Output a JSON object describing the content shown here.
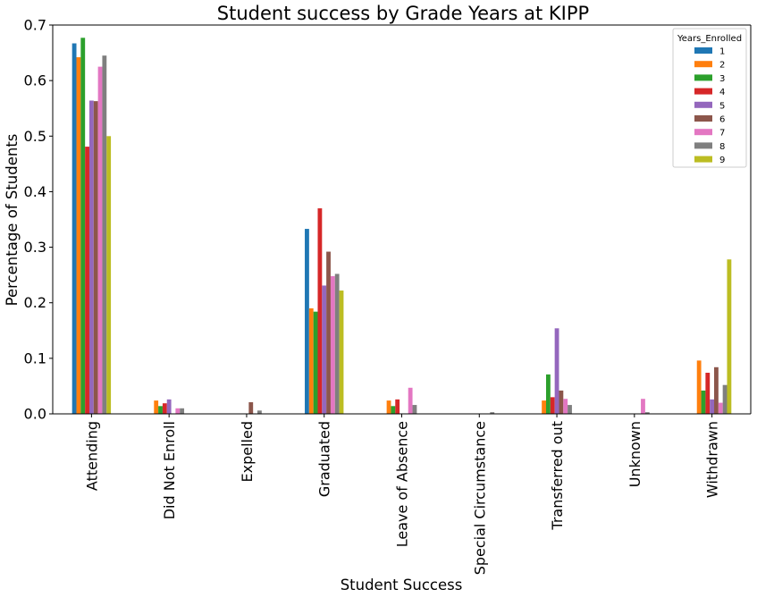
{
  "chart_data": {
    "type": "bar",
    "title": "Student success by Grade Years at KIPP",
    "xlabel": "Student Success",
    "ylabel": "Percentage of Students",
    "ylim": [
      0,
      0.7
    ],
    "yticks": [
      "0.0",
      "0.1",
      "0.2",
      "0.3",
      "0.4",
      "0.5",
      "0.6",
      "0.7"
    ],
    "grid": false,
    "legend_placement": "top-right",
    "legend_title": "Years_Enrolled",
    "categories": [
      "Attending",
      "Did Not Enroll",
      "Expelled",
      "Graduated",
      "Leave of Absence",
      "Special Circumstance",
      "Transferred out",
      "Unknown",
      "Withdrawn"
    ],
    "series": [
      {
        "name": "1",
        "color": "#1f77b4",
        "values": [
          0.667,
          0.0,
          0.0,
          0.333,
          0.0,
          0.0,
          0.0,
          0.0,
          0.0
        ]
      },
      {
        "name": "2",
        "color": "#ff7f0e",
        "values": [
          0.642,
          0.024,
          0.0,
          0.19,
          0.024,
          0.0,
          0.024,
          0.0,
          0.096
        ]
      },
      {
        "name": "3",
        "color": "#2ca02c",
        "values": [
          0.677,
          0.014,
          0.0,
          0.184,
          0.014,
          0.0,
          0.071,
          0.0,
          0.042
        ]
      },
      {
        "name": "4",
        "color": "#d62728",
        "values": [
          0.481,
          0.019,
          0.0,
          0.37,
          0.026,
          0.0,
          0.03,
          0.0,
          0.074
        ]
      },
      {
        "name": "5",
        "color": "#9467bd",
        "values": [
          0.564,
          0.026,
          0.0,
          0.231,
          0.0,
          0.0,
          0.154,
          0.0,
          0.026
        ]
      },
      {
        "name": "6",
        "color": "#8c564b",
        "values": [
          0.563,
          0.0,
          0.021,
          0.292,
          0.0,
          0.0,
          0.042,
          0.0,
          0.084
        ]
      },
      {
        "name": "7",
        "color": "#e377c2",
        "values": [
          0.625,
          0.01,
          0.0,
          0.248,
          0.047,
          0.0,
          0.027,
          0.027,
          0.02
        ]
      },
      {
        "name": "8",
        "color": "#7f7f7f",
        "values": [
          0.645,
          0.01,
          0.006,
          0.252,
          0.016,
          0.003,
          0.016,
          0.003,
          0.052
        ]
      },
      {
        "name": "9",
        "color": "#bcbd22",
        "values": [
          0.5,
          0.0,
          0.0,
          0.222,
          0.0,
          0.0,
          0.0,
          0.0,
          0.278
        ]
      }
    ]
  }
}
